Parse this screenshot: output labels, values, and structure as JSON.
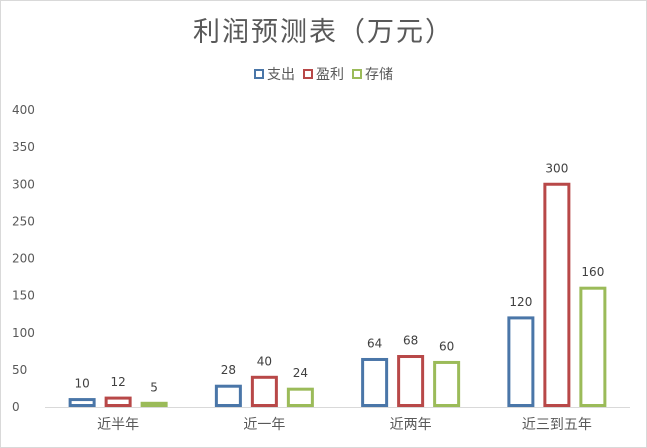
{
  "chart_data": {
    "type": "bar",
    "title": "利润预测表（万元）",
    "categories": [
      "近半年",
      "近一年",
      "近两年",
      "近三到五年"
    ],
    "series": [
      {
        "name": "支出",
        "color": "#4a76a8",
        "values": [
          10,
          28,
          64,
          120
        ]
      },
      {
        "name": "盈利",
        "color": "#b84848",
        "values": [
          12,
          40,
          68,
          300
        ]
      },
      {
        "name": "存储",
        "color": "#9bbb59",
        "values": [
          5,
          24,
          60,
          160
        ]
      }
    ],
    "yticks": [
      0,
      50,
      100,
      150,
      200,
      250,
      300,
      350,
      400
    ],
    "ylim": [
      0,
      400
    ],
    "grid": false,
    "legend_position": "top",
    "data_labels": true
  }
}
